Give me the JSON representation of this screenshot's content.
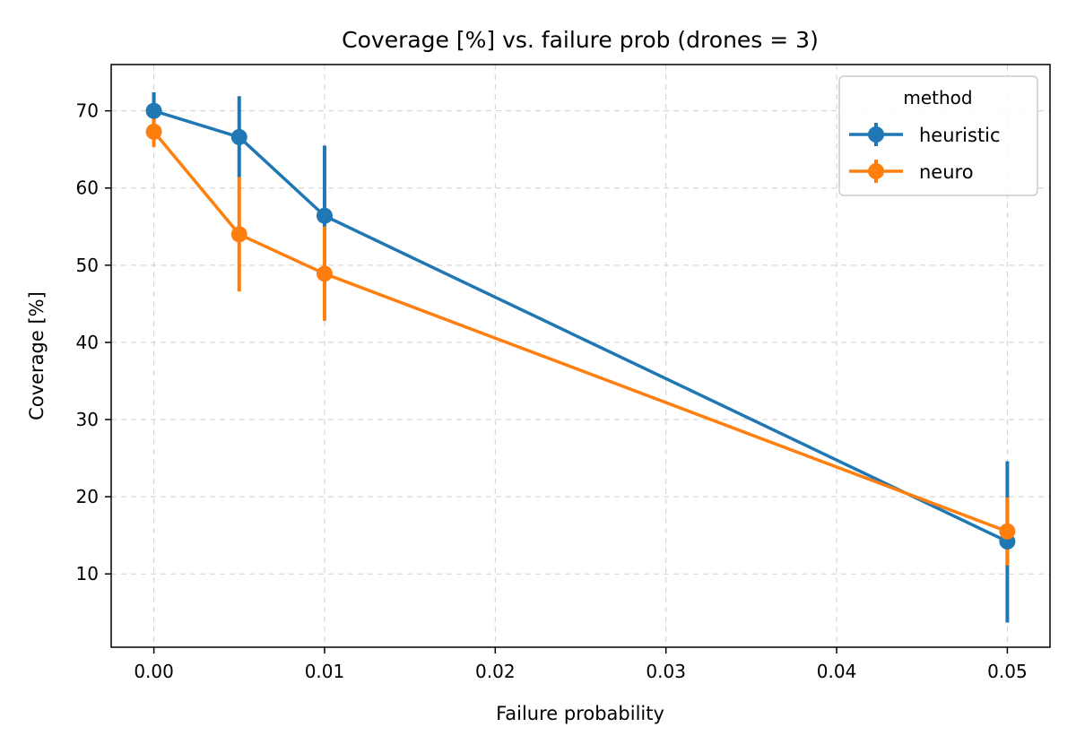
{
  "chart_data": {
    "type": "line",
    "title": "Coverage [%] vs. failure prob (drones = 3)",
    "xlabel": "Failure probability",
    "ylabel": "Coverage [%]",
    "xlim": [
      -0.0025,
      0.0525
    ],
    "ylim": [
      0.5,
      76
    ],
    "xticks": [
      0.0,
      0.01,
      0.02,
      0.03,
      0.04,
      0.05
    ],
    "xtick_labels": [
      "0.00",
      "0.01",
      "0.02",
      "0.03",
      "0.04",
      "0.05"
    ],
    "yticks": [
      10,
      20,
      30,
      40,
      50,
      60,
      70
    ],
    "ytick_labels": [
      "10",
      "20",
      "30",
      "40",
      "50",
      "60",
      "70"
    ],
    "grid": true,
    "legend": {
      "title": "method",
      "placement": "top-right"
    },
    "x": [
      0.0,
      0.005,
      0.01,
      0.05
    ],
    "series": [
      {
        "name": "heuristic",
        "color": "#1f77b4",
        "values": [
          70.0,
          66.6,
          56.4,
          14.2
        ],
        "error_low": [
          67.6,
          61.4,
          47.3,
          3.7
        ],
        "error_high": [
          72.4,
          71.9,
          65.5,
          24.6
        ]
      },
      {
        "name": "neuro",
        "color": "#ff7f0e",
        "values": [
          67.3,
          54.0,
          48.9,
          15.5
        ],
        "error_low": [
          65.3,
          46.6,
          42.8,
          11.1
        ],
        "error_high": [
          69.3,
          61.4,
          55.0,
          19.9
        ]
      }
    ]
  }
}
